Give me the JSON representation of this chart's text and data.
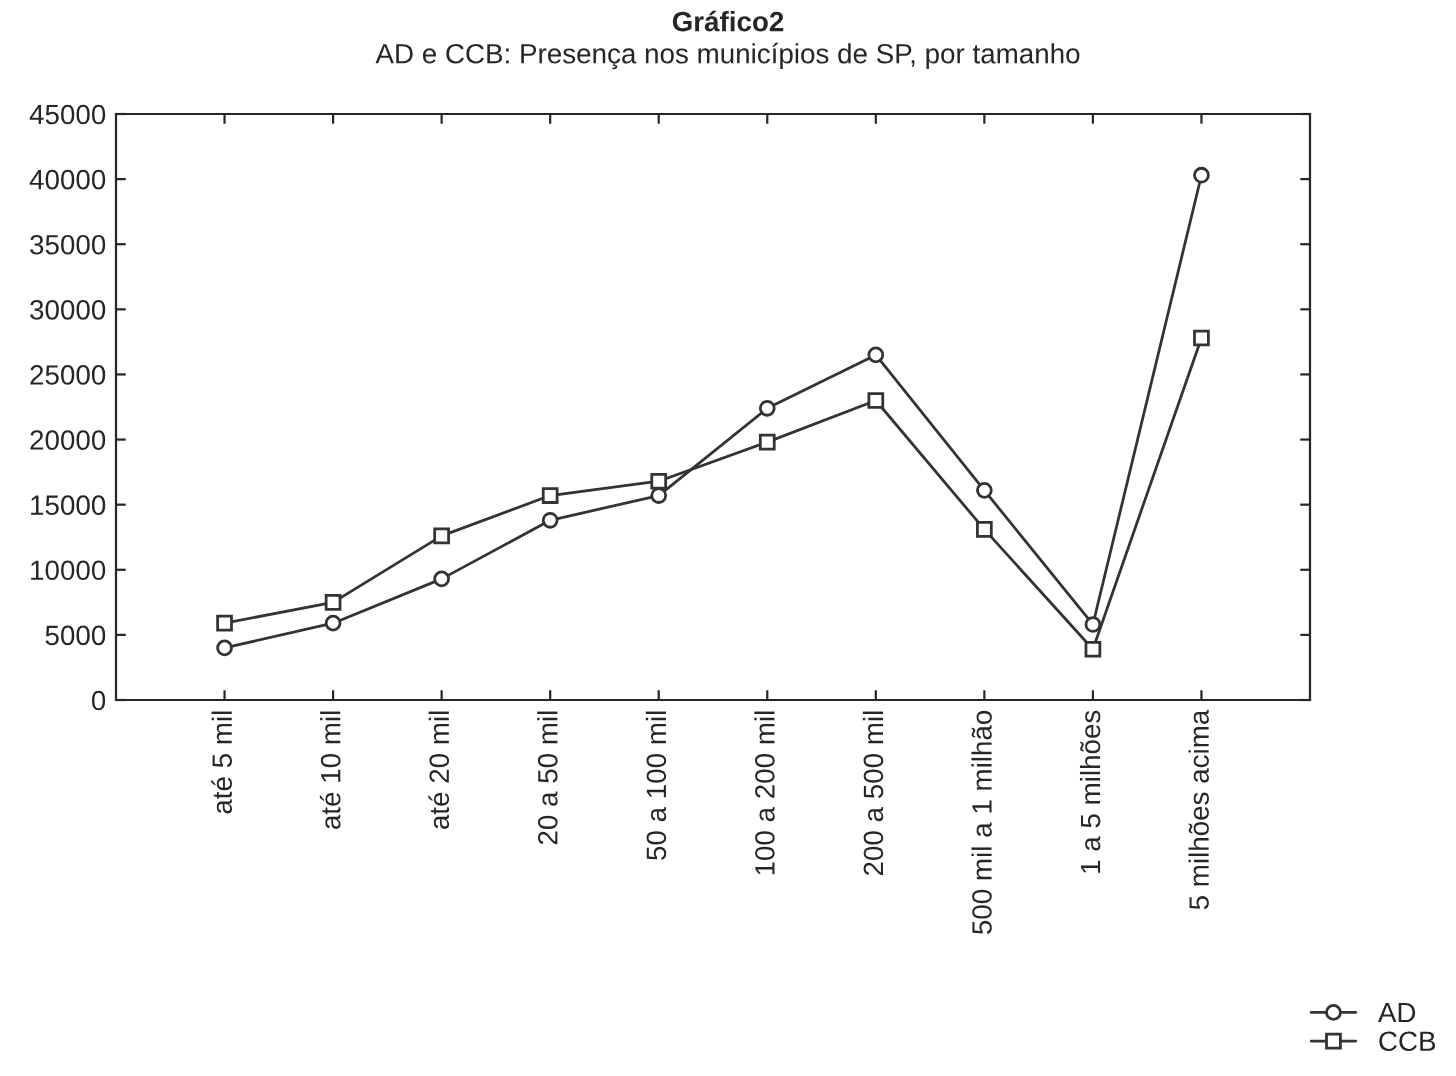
{
  "chart_data": {
    "type": "line",
    "title": "Gráfico2",
    "subtitle": "AD e CCB: Presença nos municípios de SP, por tamanho",
    "categories": [
      "até 5 mil",
      "até 10 mil",
      "até 20 mil",
      "20 a 50 mil",
      "50 a 100 mil",
      "100 a 200 mil",
      "200 a 500 mil",
      "500 mil a 1 milhão",
      "1 a 5 milhões",
      "5 milhões acima"
    ],
    "series": [
      {
        "name": "AD",
        "color": "#333333",
        "marker": "circle",
        "values": [
          4000,
          5900,
          9300,
          13800,
          15700,
          22400,
          26500,
          16100,
          5800,
          40300
        ]
      },
      {
        "name": "CCB",
        "color": "#333333",
        "marker": "square",
        "values": [
          5900,
          7500,
          12600,
          15700,
          16800,
          19800,
          23000,
          13100,
          3900,
          27800
        ]
      }
    ],
    "ylim": [
      0,
      45000
    ],
    "yticks": [
      0,
      5000,
      10000,
      15000,
      20000,
      25000,
      30000,
      35000,
      40000,
      45000
    ],
    "grid": false,
    "legend": "bottom right",
    "line_style": "solid"
  }
}
